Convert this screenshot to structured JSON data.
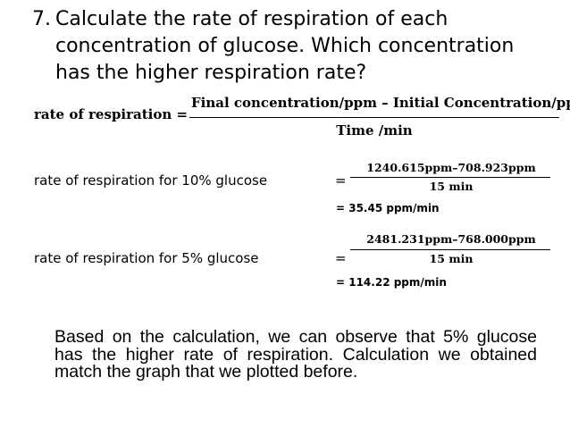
{
  "question": {
    "number": "7.",
    "lines": [
      "Calculate the rate of respiration of each",
      "concentration of glucose. Which concentration",
      "has the higher respiration rate?"
    ]
  },
  "formula": {
    "label": "rate of respiration =",
    "numerator": "Final concentration/ppm – Initial Concentration/ppm",
    "denominator": "Time /min"
  },
  "calculations": [
    {
      "label": "rate of respiration for 10% glucose",
      "equals": "=",
      "numerator": "1240.615ppm–708.923ppm",
      "denominator": "15 min",
      "result": "= 35.45 ppm/min"
    },
    {
      "label": "rate of respiration for 5% glucose",
      "equals": "=",
      "numerator": "2481.231ppm–768.000ppm",
      "denominator": "15 min",
      "result": "= 114.22 ppm/min"
    }
  ],
  "conclusion": "Based on the calculation, we can observe that 5% glucose has the higher rate of respiration. Calculation we obtained match the graph that we plotted before."
}
